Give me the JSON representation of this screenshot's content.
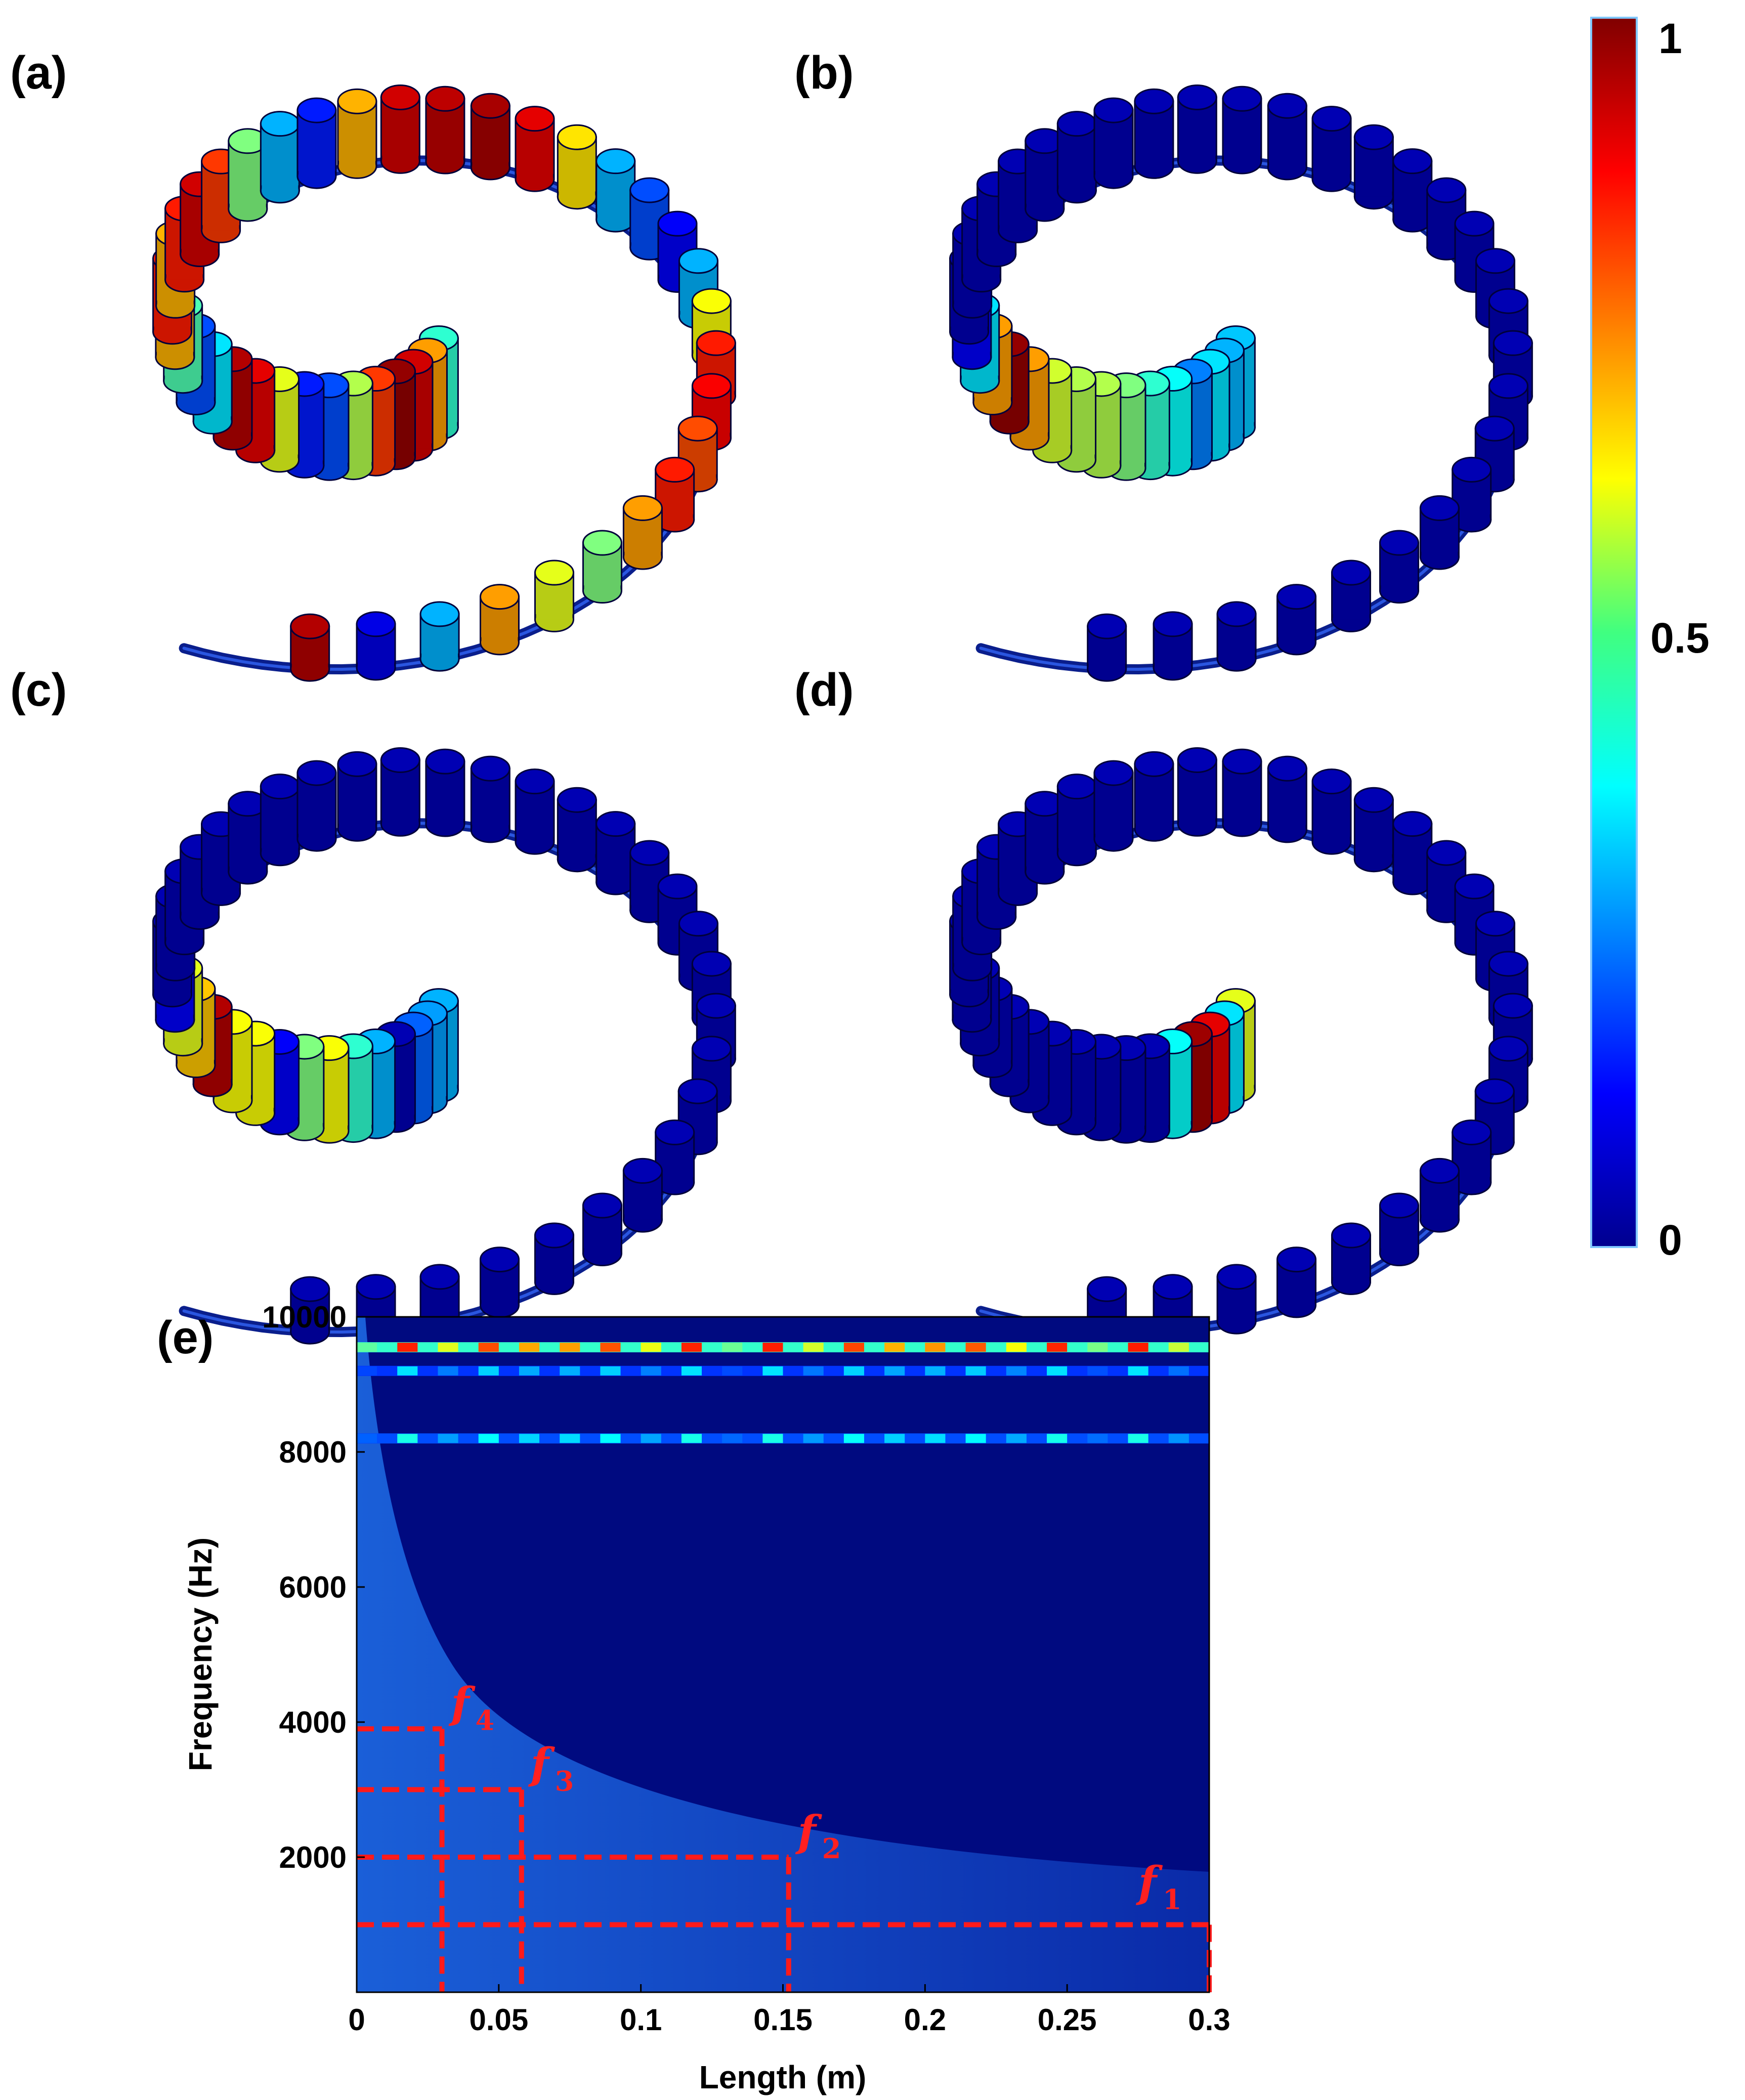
{
  "panels": [
    {
      "label": "(a)",
      "values": [
        0.42,
        0.72,
        0.92,
        0.98,
        0.82,
        0.55,
        0.2,
        0.15,
        0.6,
        0.9,
        0.95,
        0.35,
        0.2,
        0.45,
        0.7,
        0.85,
        0.7,
        0.85,
        0.92,
        0.82,
        0.5,
        0.3,
        0.15,
        0.7,
        0.92,
        0.94,
        0.96,
        0.9,
        0.65,
        0.3,
        0.2,
        0.12,
        0.3,
        0.62,
        0.85,
        0.88,
        0.8,
        0.85,
        0.72,
        0.5,
        0.6,
        0.72,
        0.3,
        0.1,
        0.95
      ]
    },
    {
      "label": "(b)",
      "values": [
        0.32,
        0.3,
        0.35,
        0.25,
        0.38,
        0.42,
        0.5,
        0.55,
        0.55,
        0.58,
        0.72,
        0.98,
        0.72,
        0.35,
        0.12,
        0.05,
        0.05,
        0.05,
        0.05,
        0.05,
        0.05,
        0.05,
        0.05,
        0.05,
        0.05,
        0.05,
        0.05,
        0.05,
        0.05,
        0.05,
        0.05,
        0.05,
        0.05,
        0.05,
        0.05,
        0.05,
        0.05,
        0.05,
        0.05,
        0.05,
        0.05,
        0.05,
        0.05,
        0.05,
        0.05
      ]
    },
    {
      "label": "(c)",
      "values": [
        0.3,
        0.28,
        0.22,
        0.05,
        0.3,
        0.42,
        0.62,
        0.5,
        0.12,
        0.62,
        0.62,
        0.95,
        0.68,
        0.6,
        0.12,
        0.05,
        0.05,
        0.05,
        0.05,
        0.05,
        0.05,
        0.05,
        0.05,
        0.05,
        0.05,
        0.05,
        0.05,
        0.05,
        0.05,
        0.05,
        0.05,
        0.05,
        0.05,
        0.05,
        0.05,
        0.05,
        0.05,
        0.05,
        0.05,
        0.05,
        0.05,
        0.05,
        0.05,
        0.05,
        0.05
      ]
    },
    {
      "label": "(d)",
      "values": [
        0.6,
        0.35,
        0.9,
        0.97,
        0.38,
        0.05,
        0.05,
        0.05,
        0.05,
        0.05,
        0.05,
        0.05,
        0.05,
        0.05,
        0.05,
        0.05,
        0.05,
        0.05,
        0.05,
        0.05,
        0.05,
        0.05,
        0.05,
        0.05,
        0.05,
        0.05,
        0.05,
        0.05,
        0.05,
        0.05,
        0.05,
        0.05,
        0.05,
        0.05,
        0.05,
        0.05,
        0.05,
        0.05,
        0.05,
        0.05,
        0.05,
        0.05,
        0.05,
        0.05,
        0.05
      ]
    }
  ],
  "colorbar": {
    "labels": [
      "1",
      "0.5",
      "0"
    ],
    "max": 1,
    "min": 0
  },
  "chart_data": {
    "type": "heatmap",
    "label": "(e)",
    "xlabel": "Length (m)",
    "ylabel": "Frequency (Hz)",
    "xlim": [
      0,
      0.3
    ],
    "ylim": [
      0,
      10000
    ],
    "xticks": [
      "0",
      "0.05",
      "0.1",
      "0.15",
      "0.2",
      "0.25",
      "0.3"
    ],
    "xtick_values": [
      0,
      0.05,
      0.1,
      0.15,
      0.2,
      0.25,
      0.3
    ],
    "yticks": [
      "2000",
      "4000",
      "6000",
      "8000",
      "10000"
    ],
    "ytick_values": [
      2000,
      4000,
      6000,
      8000,
      10000
    ],
    "bands": [
      {
        "frequency": 9550,
        "intensity": 0.85
      },
      {
        "frequency": 9200,
        "intensity": 0.35
      },
      {
        "frequency": 8200,
        "intensity": 0.4
      }
    ],
    "markers": [
      {
        "name": "f",
        "sub": "4",
        "frequency": 3900,
        "length": 0.03
      },
      {
        "name": "f",
        "sub": "3",
        "frequency": 3000,
        "length": 0.058
      },
      {
        "name": "f",
        "sub": "2",
        "frequency": 2000,
        "length": 0.152
      },
      {
        "name": "f",
        "sub": "1",
        "frequency": 1000,
        "length": 0.3
      }
    ]
  }
}
